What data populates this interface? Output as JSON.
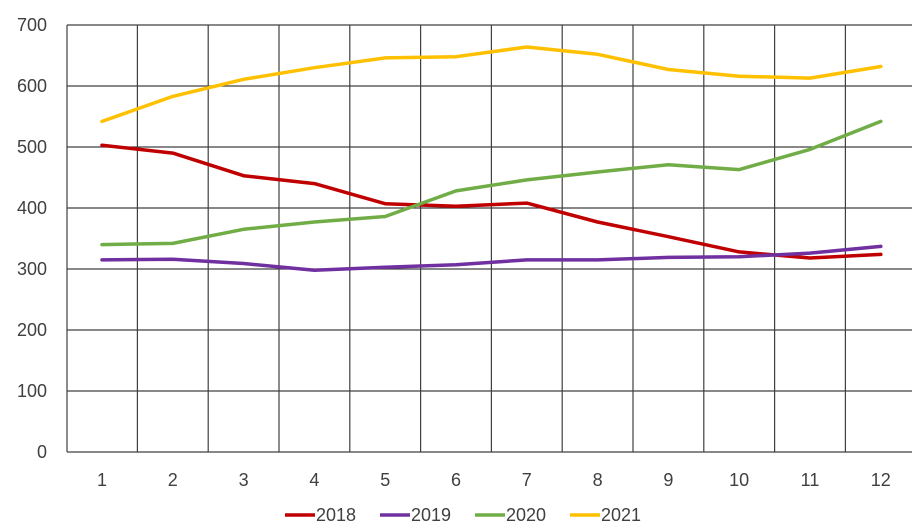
{
  "chart_data": {
    "type": "line",
    "title": "",
    "xlabel": "",
    "ylabel": "",
    "categories": [
      "1",
      "2",
      "3",
      "4",
      "5",
      "6",
      "7",
      "8",
      "9",
      "10",
      "11",
      "12"
    ],
    "ylim": [
      0,
      700
    ],
    "yticks": [
      "0",
      "100",
      "200",
      "300",
      "400",
      "500",
      "600",
      "700"
    ],
    "grid": "on (vertical and horizontal)",
    "legend_position": "bottom",
    "series": [
      {
        "name": "2018",
        "color": "#c00000",
        "values": [
          503,
          490,
          453,
          440,
          407,
          403,
          408,
          377,
          353,
          328,
          318,
          324
        ]
      },
      {
        "name": "2019",
        "color": "#7030a0",
        "values": [
          315,
          316,
          309,
          298,
          303,
          307,
          315,
          315,
          319,
          320,
          326,
          337
        ]
      },
      {
        "name": "2020",
        "color": "#70ad47",
        "values": [
          340,
          342,
          365,
          377,
          386,
          428,
          446,
          459,
          471,
          463,
          496,
          542
        ]
      },
      {
        "name": "2021",
        "color": "#ffc000",
        "values": [
          542,
          583,
          611,
          630,
          646,
          648,
          664,
          652,
          627,
          616,
          613,
          632
        ]
      }
    ]
  }
}
